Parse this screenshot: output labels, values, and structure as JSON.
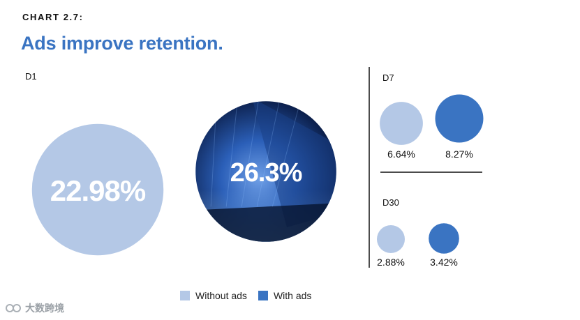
{
  "header": {
    "chart_label": "CHART 2.7:",
    "headline": "Ads improve retention."
  },
  "colors": {
    "without_ads": "#b4c8e6",
    "with_ads": "#3a74c2",
    "with_ads_dark": "#0b1d4a"
  },
  "chart_data": {
    "type": "bubble",
    "title": "Ads improve retention.",
    "unit": "%",
    "groups": [
      "D1",
      "D7",
      "D30"
    ],
    "series": [
      {
        "name": "Without ads",
        "values": [
          22.98,
          6.64,
          2.88
        ],
        "labels": [
          "22.98%",
          "6.64%",
          "2.88%"
        ]
      },
      {
        "name": "With ads",
        "values": [
          26.3,
          8.27,
          3.42
        ],
        "labels": [
          "26.3%",
          "8.27%",
          "3.42%"
        ]
      }
    ],
    "legend_position": "bottom-center"
  },
  "legend": {
    "items": [
      {
        "label": "Without ads",
        "color": "#b4c8e6"
      },
      {
        "label": "With ads",
        "color": "#3a74c2"
      }
    ]
  },
  "watermark": {
    "text": "大数跨境"
  }
}
